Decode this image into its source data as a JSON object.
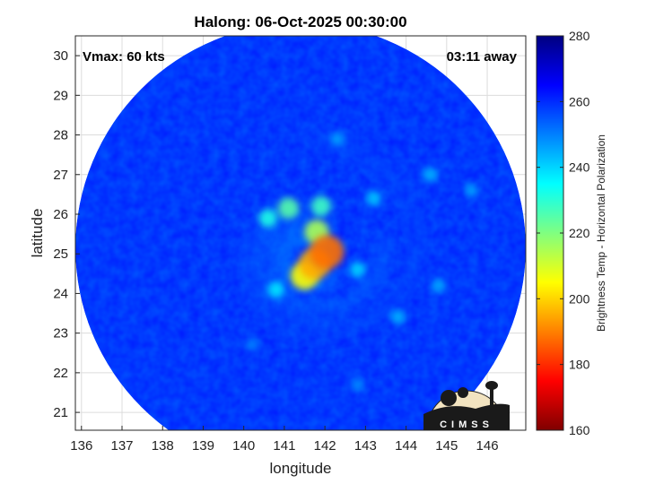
{
  "chart_data": {
    "type": "heatmap",
    "title": "Halong: 06-Oct-2025 00:30:00",
    "xlabel": "longitude",
    "ylabel": "latitude",
    "xlim": [
      135.85,
      146.95
    ],
    "ylim": [
      20.55,
      30.5
    ],
    "x_ticks": [
      136,
      137,
      138,
      139,
      140,
      141,
      142,
      143,
      144,
      145,
      146
    ],
    "y_ticks": [
      21,
      22,
      23,
      24,
      25,
      26,
      27,
      28,
      29,
      30
    ],
    "grid": true,
    "annotations": {
      "top_left": "Vmax: 60 kts",
      "top_right": "03:11 away"
    },
    "colorbar": {
      "label": "Brightness Temp - Horizontal Polarization",
      "range": [
        160,
        280
      ],
      "ticks": [
        160,
        180,
        200,
        220,
        240,
        260,
        280
      ],
      "colormap": [
        "#800000",
        "#ff0000",
        "#ff8000",
        "#ffff00",
        "#80ff80",
        "#00ffff",
        "#0080ff",
        "#0000ff",
        "#000080"
      ]
    },
    "swath": {
      "center": [
        141.4,
        25.15
      ],
      "radius_deg": 5.55,
      "background_value": 262
    },
    "storm_center": [
      141.6,
      25.0
    ],
    "min_brightness_temp": 187,
    "features": [
      {
        "lon": 141.75,
        "lat": 24.75,
        "value": 195
      },
      {
        "lon": 142.05,
        "lat": 25.05,
        "value": 188
      },
      {
        "lon": 141.5,
        "lat": 24.45,
        "value": 205
      },
      {
        "lon": 141.8,
        "lat": 25.55,
        "value": 215
      },
      {
        "lon": 141.1,
        "lat": 26.15,
        "value": 225
      },
      {
        "lon": 140.6,
        "lat": 25.9,
        "value": 232
      },
      {
        "lon": 141.9,
        "lat": 26.2,
        "value": 228
      },
      {
        "lon": 140.8,
        "lat": 24.1,
        "value": 238
      },
      {
        "lon": 142.8,
        "lat": 24.6,
        "value": 240
      },
      {
        "lon": 143.2,
        "lat": 26.4,
        "value": 242
      },
      {
        "lon": 144.6,
        "lat": 27.0,
        "value": 244
      },
      {
        "lon": 145.6,
        "lat": 26.6,
        "value": 246
      },
      {
        "lon": 143.8,
        "lat": 23.4,
        "value": 244
      },
      {
        "lon": 144.8,
        "lat": 24.2,
        "value": 245
      },
      {
        "lon": 142.3,
        "lat": 27.9,
        "value": 246
      },
      {
        "lon": 142.8,
        "lat": 21.7,
        "value": 248
      },
      {
        "lon": 140.2,
        "lat": 22.7,
        "value": 250
      }
    ]
  },
  "logo": {
    "text": "CIMSS"
  }
}
